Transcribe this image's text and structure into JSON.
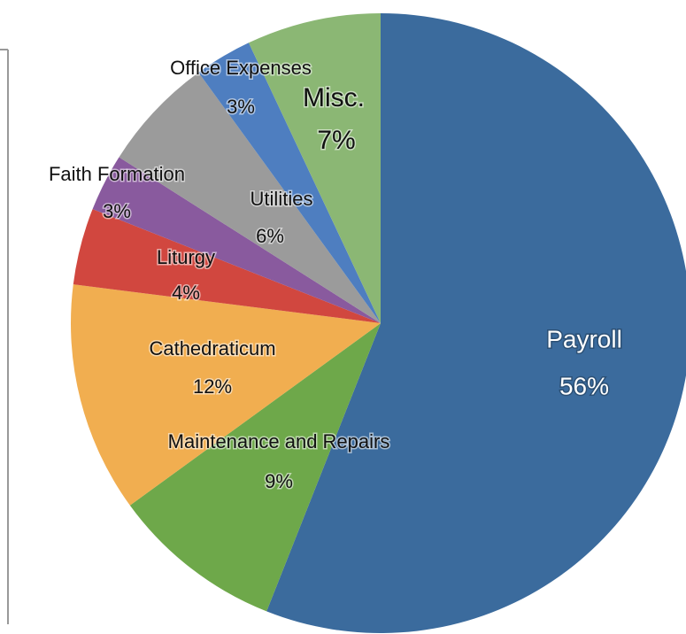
{
  "chart_data": {
    "type": "pie",
    "categories": [
      "Payroll",
      "Maintenance and Repairs",
      "Cathedraticum",
      "Liturgy",
      "Faith Formation",
      "Utilities",
      "Office Expenses",
      "Misc."
    ],
    "values": [
      56,
      9,
      12,
      4,
      3,
      6,
      3,
      7
    ],
    "value_labels": [
      "56%",
      "9%",
      "12%",
      "4%",
      "3%",
      "6%",
      "3%",
      "7%"
    ],
    "colors": [
      "#3b6b9d",
      "#6ea84a",
      "#f1ae50",
      "#d1473f",
      "#895a9e",
      "#9b9b9b",
      "#4e7ec0",
      "#8bb774"
    ]
  }
}
